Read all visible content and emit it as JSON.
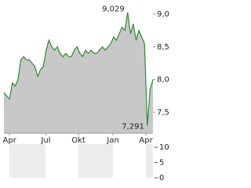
{
  "chart_data": [
    {
      "type": "area",
      "color": "#2e8b2e",
      "fill": "#c8c8c8",
      "x": [
        0,
        1,
        2,
        3,
        4,
        5,
        6,
        7,
        8,
        9,
        10,
        11,
        12,
        13,
        14,
        15,
        16,
        17,
        18,
        19,
        20,
        21,
        22,
        23,
        24,
        25,
        26,
        27,
        28,
        29,
        30,
        31,
        32,
        33,
        34,
        35,
        36,
        37,
        38,
        39,
        40,
        41,
        42,
        43,
        44,
        45,
        46,
        47,
        48,
        49,
        50,
        51,
        52,
        53
      ],
      "values": [
        7.8,
        7.75,
        7.7,
        7.95,
        7.9,
        8.0,
        8.3,
        8.35,
        8.3,
        8.3,
        8.25,
        8.2,
        8.05,
        8.15,
        8.2,
        8.45,
        8.6,
        8.5,
        8.45,
        8.5,
        8.4,
        8.35,
        8.4,
        8.35,
        8.35,
        8.45,
        8.5,
        8.4,
        8.35,
        8.45,
        8.4,
        8.45,
        8.4,
        8.4,
        8.45,
        8.5,
        8.45,
        8.5,
        8.55,
        8.65,
        8.6,
        8.7,
        8.8,
        8.75,
        9.029,
        8.7,
        8.85,
        8.6,
        8.75,
        8.65,
        8.55,
        7.291,
        7.85,
        8.0
      ],
      "xlim": [
        0,
        53
      ],
      "xticks": [
        {
          "value": 2,
          "label": "Apr"
        },
        {
          "value": 14.9,
          "label": "Jul"
        },
        {
          "value": 26.5,
          "label": "Okt"
        },
        {
          "value": 38.8,
          "label": "Jan"
        },
        {
          "value": 50.5,
          "label": "Apr"
        }
      ],
      "ylim": [
        7.18,
        9.12
      ],
      "yticks": [
        {
          "value": 7.5,
          "label": "7,5"
        },
        {
          "value": 8.0,
          "label": "8,0"
        },
        {
          "value": 8.5,
          "label": "8,5"
        },
        {
          "value": 9.0,
          "label": "9,0"
        }
      ],
      "annotations": [
        {
          "x": 44,
          "y": 9.029,
          "text": "9,029"
        },
        {
          "x": 51,
          "y": 7.291,
          "text": "7,291"
        }
      ]
    },
    {
      "type": "bar",
      "ylim": [
        0,
        10
      ],
      "yticks": [
        0,
        5,
        10
      ]
    }
  ]
}
